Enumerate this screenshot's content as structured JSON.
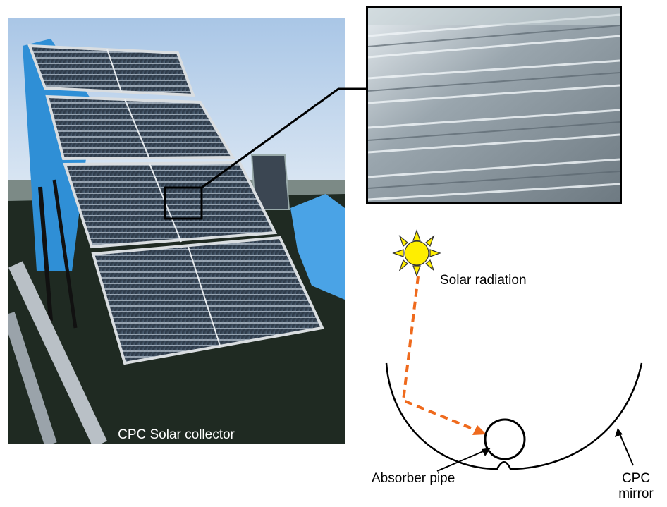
{
  "figure": {
    "photo_caption": "CPC Solar collector",
    "labels": {
      "solar_radiation": "Solar radiation",
      "absorber_pipe": "Absorber pipe",
      "cpc_mirror_line1": "CPC",
      "cpc_mirror_line2": "mirror"
    }
  },
  "colors": {
    "ray": "#ef6a1d",
    "sun_fill": "#ffee00",
    "sun_rays": "#f5c400",
    "sky": "#c9dcef",
    "tarp": "#2f8fd6",
    "roof": "#1f2a22",
    "panel": "#3a4a5a"
  },
  "icons": [
    "sun-icon",
    "arrow-icon"
  ]
}
